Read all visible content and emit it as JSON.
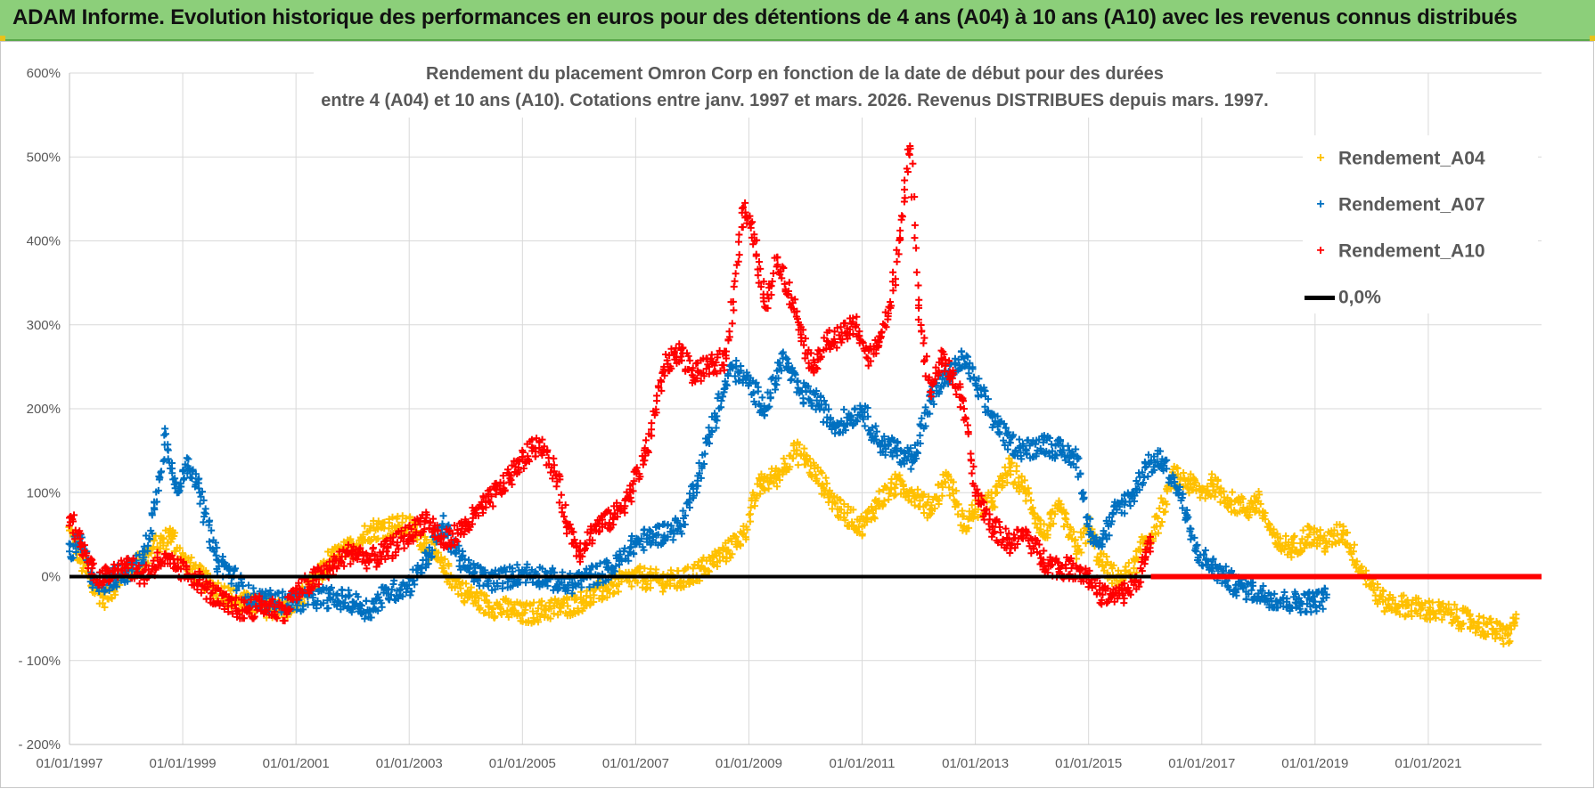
{
  "header": {
    "banner": "ADAM Informe. Evolution historique des performances en euros pour des détentions de 4 ans (A04) à 10 ans (A10) avec les revenus connus distribués"
  },
  "colors": {
    "banner_bg": "#8ccf7a",
    "a04": "#ffc000",
    "a07": "#0070c0",
    "a10": "#ff0000",
    "zero": "#000000",
    "grid": "#d9d9d9"
  },
  "chart_data": {
    "type": "scatter",
    "title_line1": "Rendement du placement Omron Corp en fonction de la date de début pour des durées",
    "title_line2": "entre 4 (A04) et 10 ans (A10). Cotations entre janv. 1997 et mars. 2026. Revenus DISTRIBUES depuis mars. 1997.",
    "x_range": [
      1997.0,
      2023.0
    ],
    "ylim": [
      -200,
      600
    ],
    "y_ticks": [
      600,
      500,
      400,
      300,
      200,
      100,
      0,
      -100,
      -200
    ],
    "y_tick_labels": [
      "600%",
      "500%",
      "400%",
      "300%",
      "200%",
      "100%",
      "0%",
      "- 100%",
      "- 200%"
    ],
    "x_ticks": [
      1997,
      1999,
      2001,
      2003,
      2005,
      2007,
      2009,
      2011,
      2013,
      2015,
      2017,
      2019,
      2021
    ],
    "x_tick_labels": [
      "01/01/1997",
      "01/01/1999",
      "01/01/2001",
      "01/01/2003",
      "01/01/2005",
      "01/01/2007",
      "01/01/2009",
      "01/01/2011",
      "01/01/2013",
      "01/01/2015",
      "01/01/2017",
      "01/01/2019",
      "01/01/2021"
    ],
    "legend": [
      {
        "key": "a04",
        "label": "Rendement_A04",
        "marker": "+"
      },
      {
        "key": "a07",
        "label": "Rendement_A07",
        "marker": "+"
      },
      {
        "key": "a10",
        "label": "Rendement_A10",
        "marker": "+"
      },
      {
        "key": "zero",
        "label": "0,0%",
        "marker": "line"
      }
    ],
    "series": [
      {
        "name": "Rendement_A04",
        "color": "#ffc000",
        "x": [
          1997.0,
          1997.2,
          1997.4,
          1997.6,
          1997.8,
          1998.0,
          1998.3,
          1998.6,
          1998.8,
          1999.0,
          1999.3,
          1999.6,
          2000.0,
          2000.4,
          2000.8,
          2001.0,
          2001.3,
          2001.6,
          2002.0,
          2002.3,
          2002.7,
          2003.0,
          2003.3,
          2003.6,
          2004.0,
          2004.4,
          2004.8,
          2005.0,
          2005.4,
          2005.8,
          2006.2,
          2006.6,
          2007.0,
          2007.4,
          2007.8,
          2008.2,
          2008.6,
          2008.9,
          2009.2,
          2009.5,
          2009.8,
          2010.0,
          2010.3,
          2010.6,
          2011.0,
          2011.3,
          2011.6,
          2011.9,
          2012.2,
          2012.5,
          2012.8,
          2013.0,
          2013.3,
          2013.6,
          2013.9,
          2014.2,
          2014.5,
          2014.8,
          2015.0,
          2015.2,
          2015.5,
          2015.8,
          2016.0,
          2016.2,
          2016.5,
          2016.8,
          2017.0,
          2017.2,
          2017.5,
          2017.8,
          2018.0,
          2018.3,
          2018.6,
          2018.9,
          2019.2,
          2019.5,
          2019.8,
          2020.2,
          2020.6,
          2021.0,
          2021.4,
          2021.8,
          2022.2,
          2022.4,
          2022.55
        ],
        "y": [
          55,
          20,
          -10,
          -25,
          -10,
          5,
          20,
          40,
          50,
          20,
          0,
          -15,
          -30,
          -35,
          -40,
          -30,
          -10,
          20,
          35,
          55,
          60,
          60,
          40,
          10,
          -20,
          -35,
          -40,
          -45,
          -40,
          -35,
          -25,
          -10,
          0,
          -5,
          -5,
          10,
          30,
          50,
          110,
          120,
          150,
          140,
          110,
          80,
          60,
          90,
          110,
          100,
          80,
          120,
          60,
          80,
          90,
          130,
          100,
          50,
          80,
          30,
          60,
          20,
          -5,
          10,
          40,
          60,
          120,
          110,
          100,
          110,
          90,
          80,
          90,
          40,
          35,
          50,
          40,
          55,
          10,
          -30,
          -35,
          -40,
          -45,
          -55,
          -65,
          -70,
          -50
        ]
      },
      {
        "name": "Rendement_A07",
        "color": "#0070c0",
        "x": [
          1997.0,
          1997.2,
          1997.4,
          1997.6,
          1997.8,
          1998.0,
          1998.3,
          1998.5,
          1998.7,
          1998.9,
          1999.1,
          1999.3,
          1999.6,
          1999.9,
          2000.2,
          2000.6,
          2001.0,
          2001.3,
          2001.6,
          2002.0,
          2002.3,
          2002.6,
          2003.0,
          2003.3,
          2003.6,
          2004.0,
          2004.4,
          2004.8,
          2005.0,
          2005.4,
          2005.8,
          2006.2,
          2006.6,
          2007.0,
          2007.4,
          2007.8,
          2008.1,
          2008.4,
          2008.7,
          2009.0,
          2009.3,
          2009.6,
          2009.9,
          2010.2,
          2010.5,
          2010.8,
          2011.0,
          2011.3,
          2011.6,
          2011.9,
          2012.2,
          2012.5,
          2012.8,
          2013.0,
          2013.3,
          2013.6,
          2013.9,
          2014.2,
          2014.5,
          2014.8,
          2015.0,
          2015.2,
          2015.5,
          2015.8,
          2016.0,
          2016.3,
          2016.6,
          2016.9,
          2017.2,
          2017.6,
          2018.0,
          2018.5,
          2019.0,
          2019.2
        ],
        "y": [
          30,
          40,
          0,
          -10,
          0,
          5,
          20,
          80,
          170,
          100,
          140,
          100,
          20,
          0,
          -25,
          -30,
          -30,
          -25,
          -25,
          -30,
          -40,
          -20,
          -10,
          20,
          60,
          10,
          -5,
          0,
          5,
          0,
          -10,
          0,
          10,
          40,
          50,
          60,
          120,
          190,
          250,
          230,
          200,
          260,
          220,
          210,
          180,
          190,
          200,
          160,
          150,
          140,
          210,
          240,
          260,
          230,
          190,
          160,
          150,
          160,
          150,
          140,
          60,
          40,
          80,
          100,
          130,
          140,
          100,
          30,
          10,
          -10,
          -20,
          -30,
          -30,
          -25
        ]
      },
      {
        "name": "Rendement_A10",
        "color": "#ff0000",
        "x": [
          1997.0,
          1997.2,
          1997.4,
          1997.6,
          1997.8,
          1998.0,
          1998.3,
          1998.6,
          1998.9,
          1999.2,
          1999.5,
          1999.8,
          2000.1,
          2000.4,
          2000.8,
          2001.0,
          2001.3,
          2001.6,
          2002.0,
          2002.3,
          2002.6,
          2003.0,
          2003.3,
          2003.6,
          2004.0,
          2004.4,
          2004.8,
          2005.0,
          2005.3,
          2005.6,
          2005.8,
          2006.0,
          2006.3,
          2006.6,
          2006.9,
          2007.2,
          2007.5,
          2007.8,
          2008.0,
          2008.3,
          2008.6,
          2008.9,
          2009.1,
          2009.3,
          2009.5,
          2009.7,
          2009.9,
          2010.1,
          2010.4,
          2010.7,
          2010.9,
          2011.1,
          2011.3,
          2011.5,
          2011.7,
          2011.85,
          2012.0,
          2012.2,
          2012.4,
          2012.6,
          2012.8,
          2013.0,
          2013.3,
          2013.6,
          2013.9,
          2014.2,
          2014.5,
          2014.8,
          2015.0,
          2015.2,
          2015.4,
          2015.6,
          2015.8,
          2016.0,
          2016.1
        ],
        "y": [
          70,
          40,
          10,
          -5,
          10,
          15,
          0,
          20,
          10,
          0,
          -20,
          -35,
          -40,
          -35,
          -40,
          -20,
          -5,
          10,
          30,
          20,
          30,
          50,
          70,
          40,
          60,
          90,
          120,
          140,
          160,
          120,
          60,
          30,
          60,
          70,
          100,
          150,
          250,
          270,
          240,
          250,
          260,
          440,
          400,
          320,
          380,
          340,
          300,
          250,
          280,
          290,
          300,
          260,
          280,
          320,
          430,
          510,
          320,
          220,
          260,
          240,
          200,
          100,
          60,
          40,
          50,
          20,
          10,
          10,
          0,
          -20,
          -25,
          -20,
          -10,
          20,
          40
        ]
      }
    ],
    "zero_line": {
      "label": "0,0%",
      "y": 0,
      "x_start": 1997.0,
      "x_end": 2023.0
    },
    "a10_flat_segment": {
      "x_start": 2016.1,
      "x_end": 2023.0,
      "y": 0
    }
  }
}
